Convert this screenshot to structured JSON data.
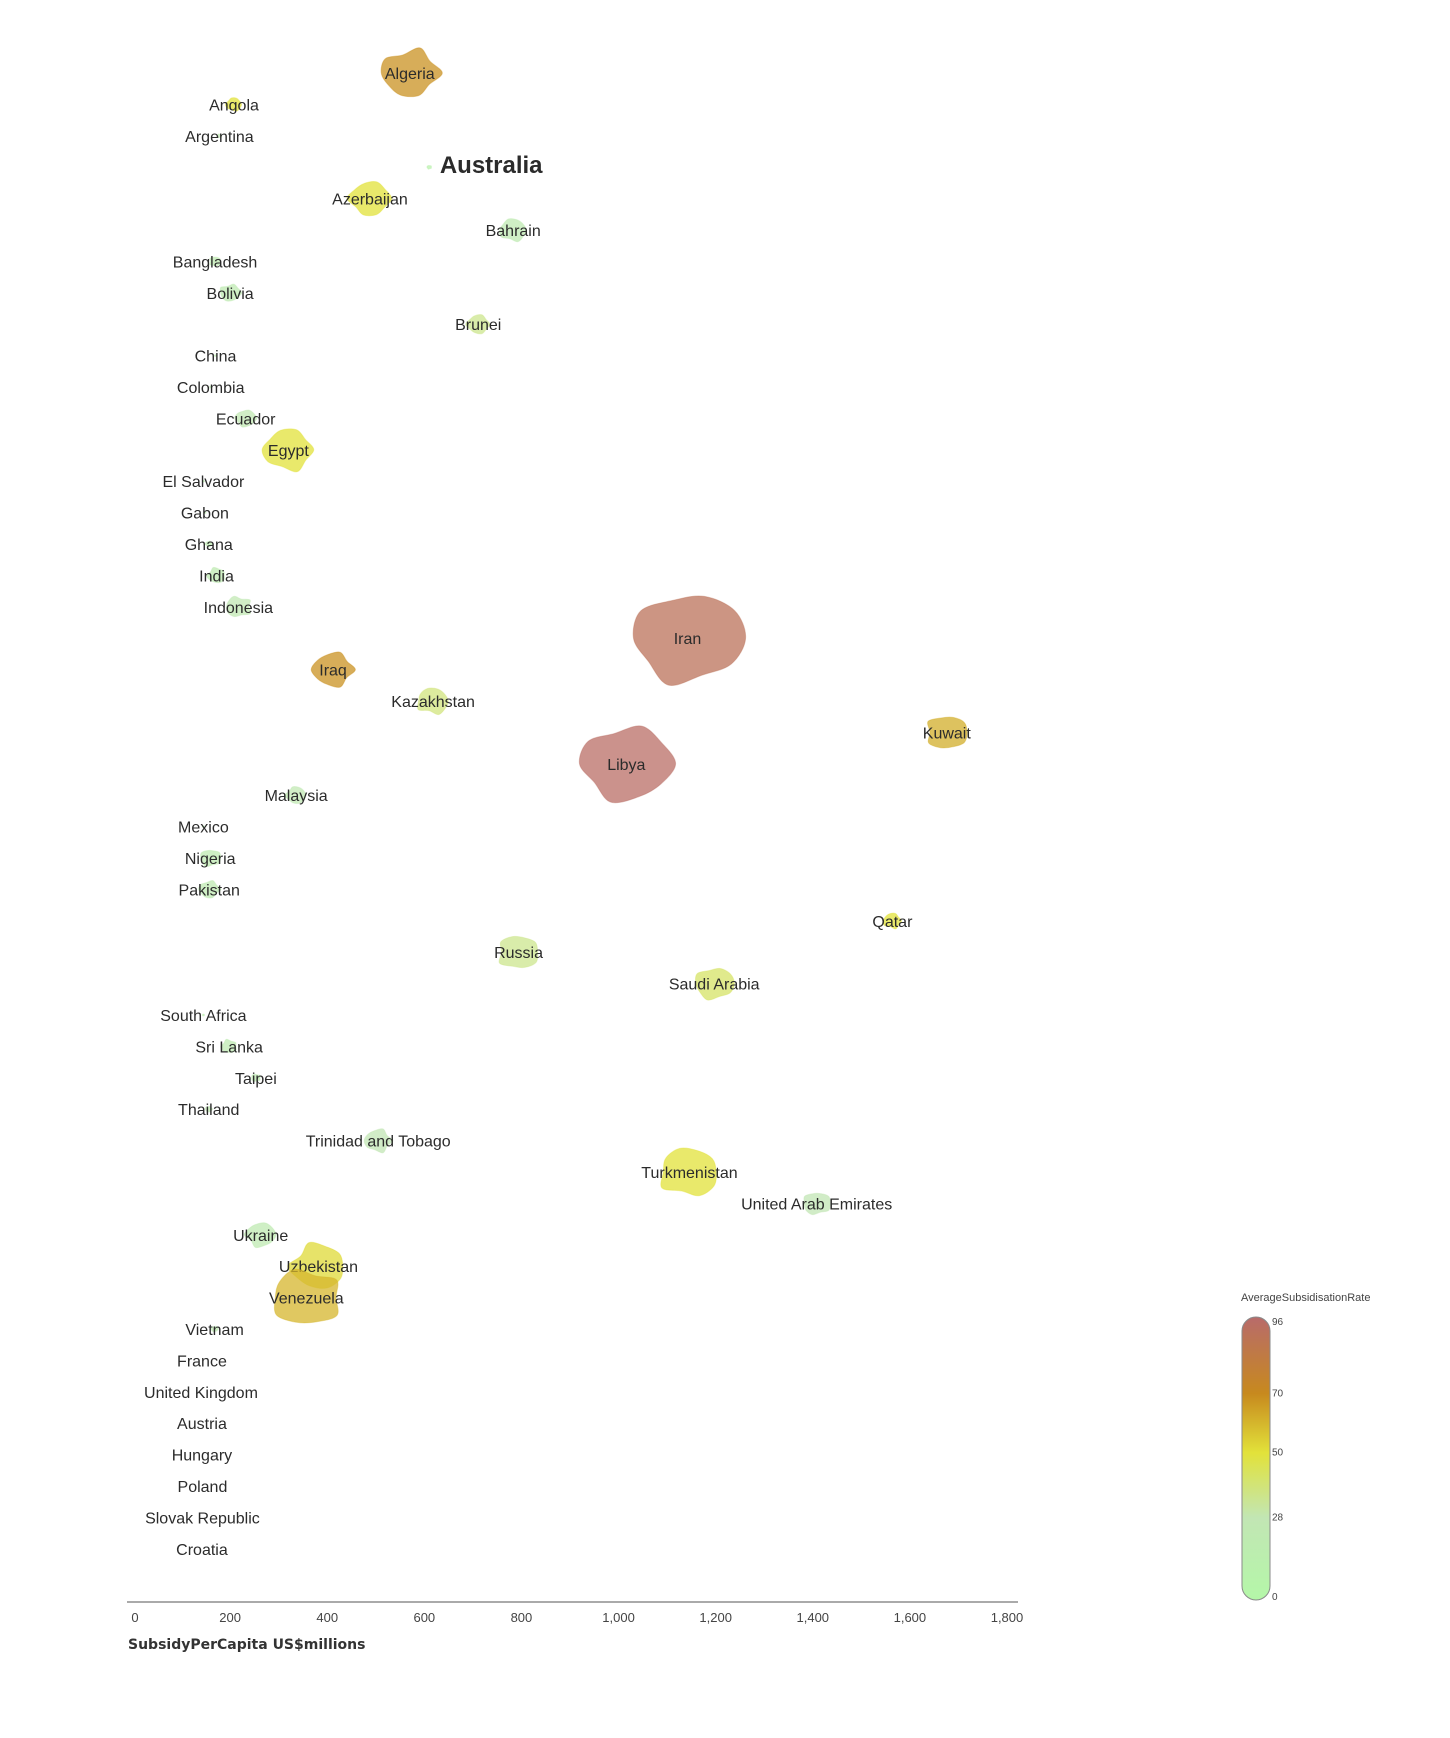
{
  "chart_data": {
    "type": "scatter",
    "xlabel": "SubsidyPerCapita US$millions",
    "xlim": [
      0,
      1800
    ],
    "xticks": [
      "0",
      "200",
      "400",
      "600",
      "800",
      "1,000",
      "1,200",
      "1,400",
      "1,600",
      "1,800"
    ],
    "color_legend": {
      "title": "AverageSubsidisationRate",
      "min": 0,
      "max": 96,
      "ticks": [
        "96",
        "70",
        "50",
        "28",
        "0"
      ]
    },
    "highlight": "Australia",
    "points": [
      {
        "name": "Algeria",
        "x": 570,
        "rate": 68,
        "size": 25
      },
      {
        "name": "Angola",
        "x": 208,
        "rate": 50,
        "size": 7
      },
      {
        "name": "Argentina",
        "x": 178,
        "rate": 25,
        "size": 2
      },
      {
        "name": "Australia",
        "x": 610,
        "rate": 10,
        "size": 2
      },
      {
        "name": "Azerbaijan",
        "x": 488,
        "rate": 50,
        "size": 18
      },
      {
        "name": "Bahrain",
        "x": 783,
        "rate": 22,
        "size": 12
      },
      {
        "name": "Bangladesh",
        "x": 169,
        "rate": 22,
        "size": 5
      },
      {
        "name": "Bolivia",
        "x": 200,
        "rate": 22,
        "size": 9
      },
      {
        "name": "Brunei",
        "x": 711,
        "rate": 35,
        "size": 10
      },
      {
        "name": "China",
        "x": 170,
        "rate": 20,
        "size": 1
      },
      {
        "name": "Colombia",
        "x": 160,
        "rate": 15,
        "size": 1
      },
      {
        "name": "Ecuador",
        "x": 232,
        "rate": 25,
        "size": 9
      },
      {
        "name": "Egypt",
        "x": 320,
        "rate": 50,
        "size": 22
      },
      {
        "name": "El Salvador",
        "x": 145,
        "rate": 15,
        "size": 1
      },
      {
        "name": "Gabon",
        "x": 148,
        "rate": 15,
        "size": 1
      },
      {
        "name": "Ghana",
        "x": 156,
        "rate": 22,
        "size": 3
      },
      {
        "name": "India",
        "x": 172,
        "rate": 22,
        "size": 8
      },
      {
        "name": "Indonesia",
        "x": 217,
        "rate": 25,
        "size": 11
      },
      {
        "name": "Iran",
        "x": 1142,
        "rate": 90,
        "size": 48
      },
      {
        "name": "Iraq",
        "x": 412,
        "rate": 68,
        "size": 18
      },
      {
        "name": "Kazakhstan",
        "x": 618,
        "rate": 38,
        "size": 14
      },
      {
        "name": "Kuwait",
        "x": 1676,
        "rate": 62,
        "size": 18
      },
      {
        "name": "Libya",
        "x": 1016,
        "rate": 94,
        "size": 40
      },
      {
        "name": "Malaysia",
        "x": 336,
        "rate": 25,
        "size": 9
      },
      {
        "name": "Mexico",
        "x": 145,
        "rate": 15,
        "size": 1
      },
      {
        "name": "Nigeria",
        "x": 159,
        "rate": 22,
        "size": 9
      },
      {
        "name": "Pakistan",
        "x": 157,
        "rate": 22,
        "size": 9
      },
      {
        "name": "Qatar",
        "x": 1564,
        "rate": 50,
        "size": 8
      },
      {
        "name": "Russia",
        "x": 794,
        "rate": 35,
        "size": 18
      },
      {
        "name": "Saudi Arabia",
        "x": 1197,
        "rate": 42,
        "size": 17
      },
      {
        "name": "South Africa",
        "x": 145,
        "rate": 15,
        "size": 1
      },
      {
        "name": "Sri Lanka",
        "x": 198,
        "rate": 22,
        "size": 7
      },
      {
        "name": "Taipei",
        "x": 253,
        "rate": 22,
        "size": 4
      },
      {
        "name": "Thailand",
        "x": 156,
        "rate": 25,
        "size": 3
      },
      {
        "name": "Trinidad and Tobago",
        "x": 505,
        "rate": 28,
        "size": 12
      },
      {
        "name": "Turkmenistan",
        "x": 1146,
        "rate": 50,
        "size": 26
      },
      {
        "name": "United Arab Emirates",
        "x": 1408,
        "rate": 28,
        "size": 12
      },
      {
        "name": "Ukraine",
        "x": 263,
        "rate": 22,
        "size": 13
      },
      {
        "name": "Uzbekistan",
        "x": 382,
        "rate": 52,
        "size": 24
      },
      {
        "name": "Venezuela",
        "x": 357,
        "rate": 60,
        "size": 30
      },
      {
        "name": "Vietnam",
        "x": 168,
        "rate": 22,
        "size": 3
      },
      {
        "name": "France",
        "x": 142,
        "rate": 15,
        "size": 0
      },
      {
        "name": "United Kingdom",
        "x": 140,
        "rate": 15,
        "size": 0
      },
      {
        "name": "Austria",
        "x": 142,
        "rate": 15,
        "size": 0
      },
      {
        "name": "Hungary",
        "x": 142,
        "rate": 15,
        "size": 0
      },
      {
        "name": "Poland",
        "x": 143,
        "rate": 15,
        "size": 0
      },
      {
        "name": "Slovak Republic",
        "x": 143,
        "rate": 15,
        "size": 0
      },
      {
        "name": "Croatia",
        "x": 142,
        "rate": 15,
        "size": 0
      }
    ]
  }
}
